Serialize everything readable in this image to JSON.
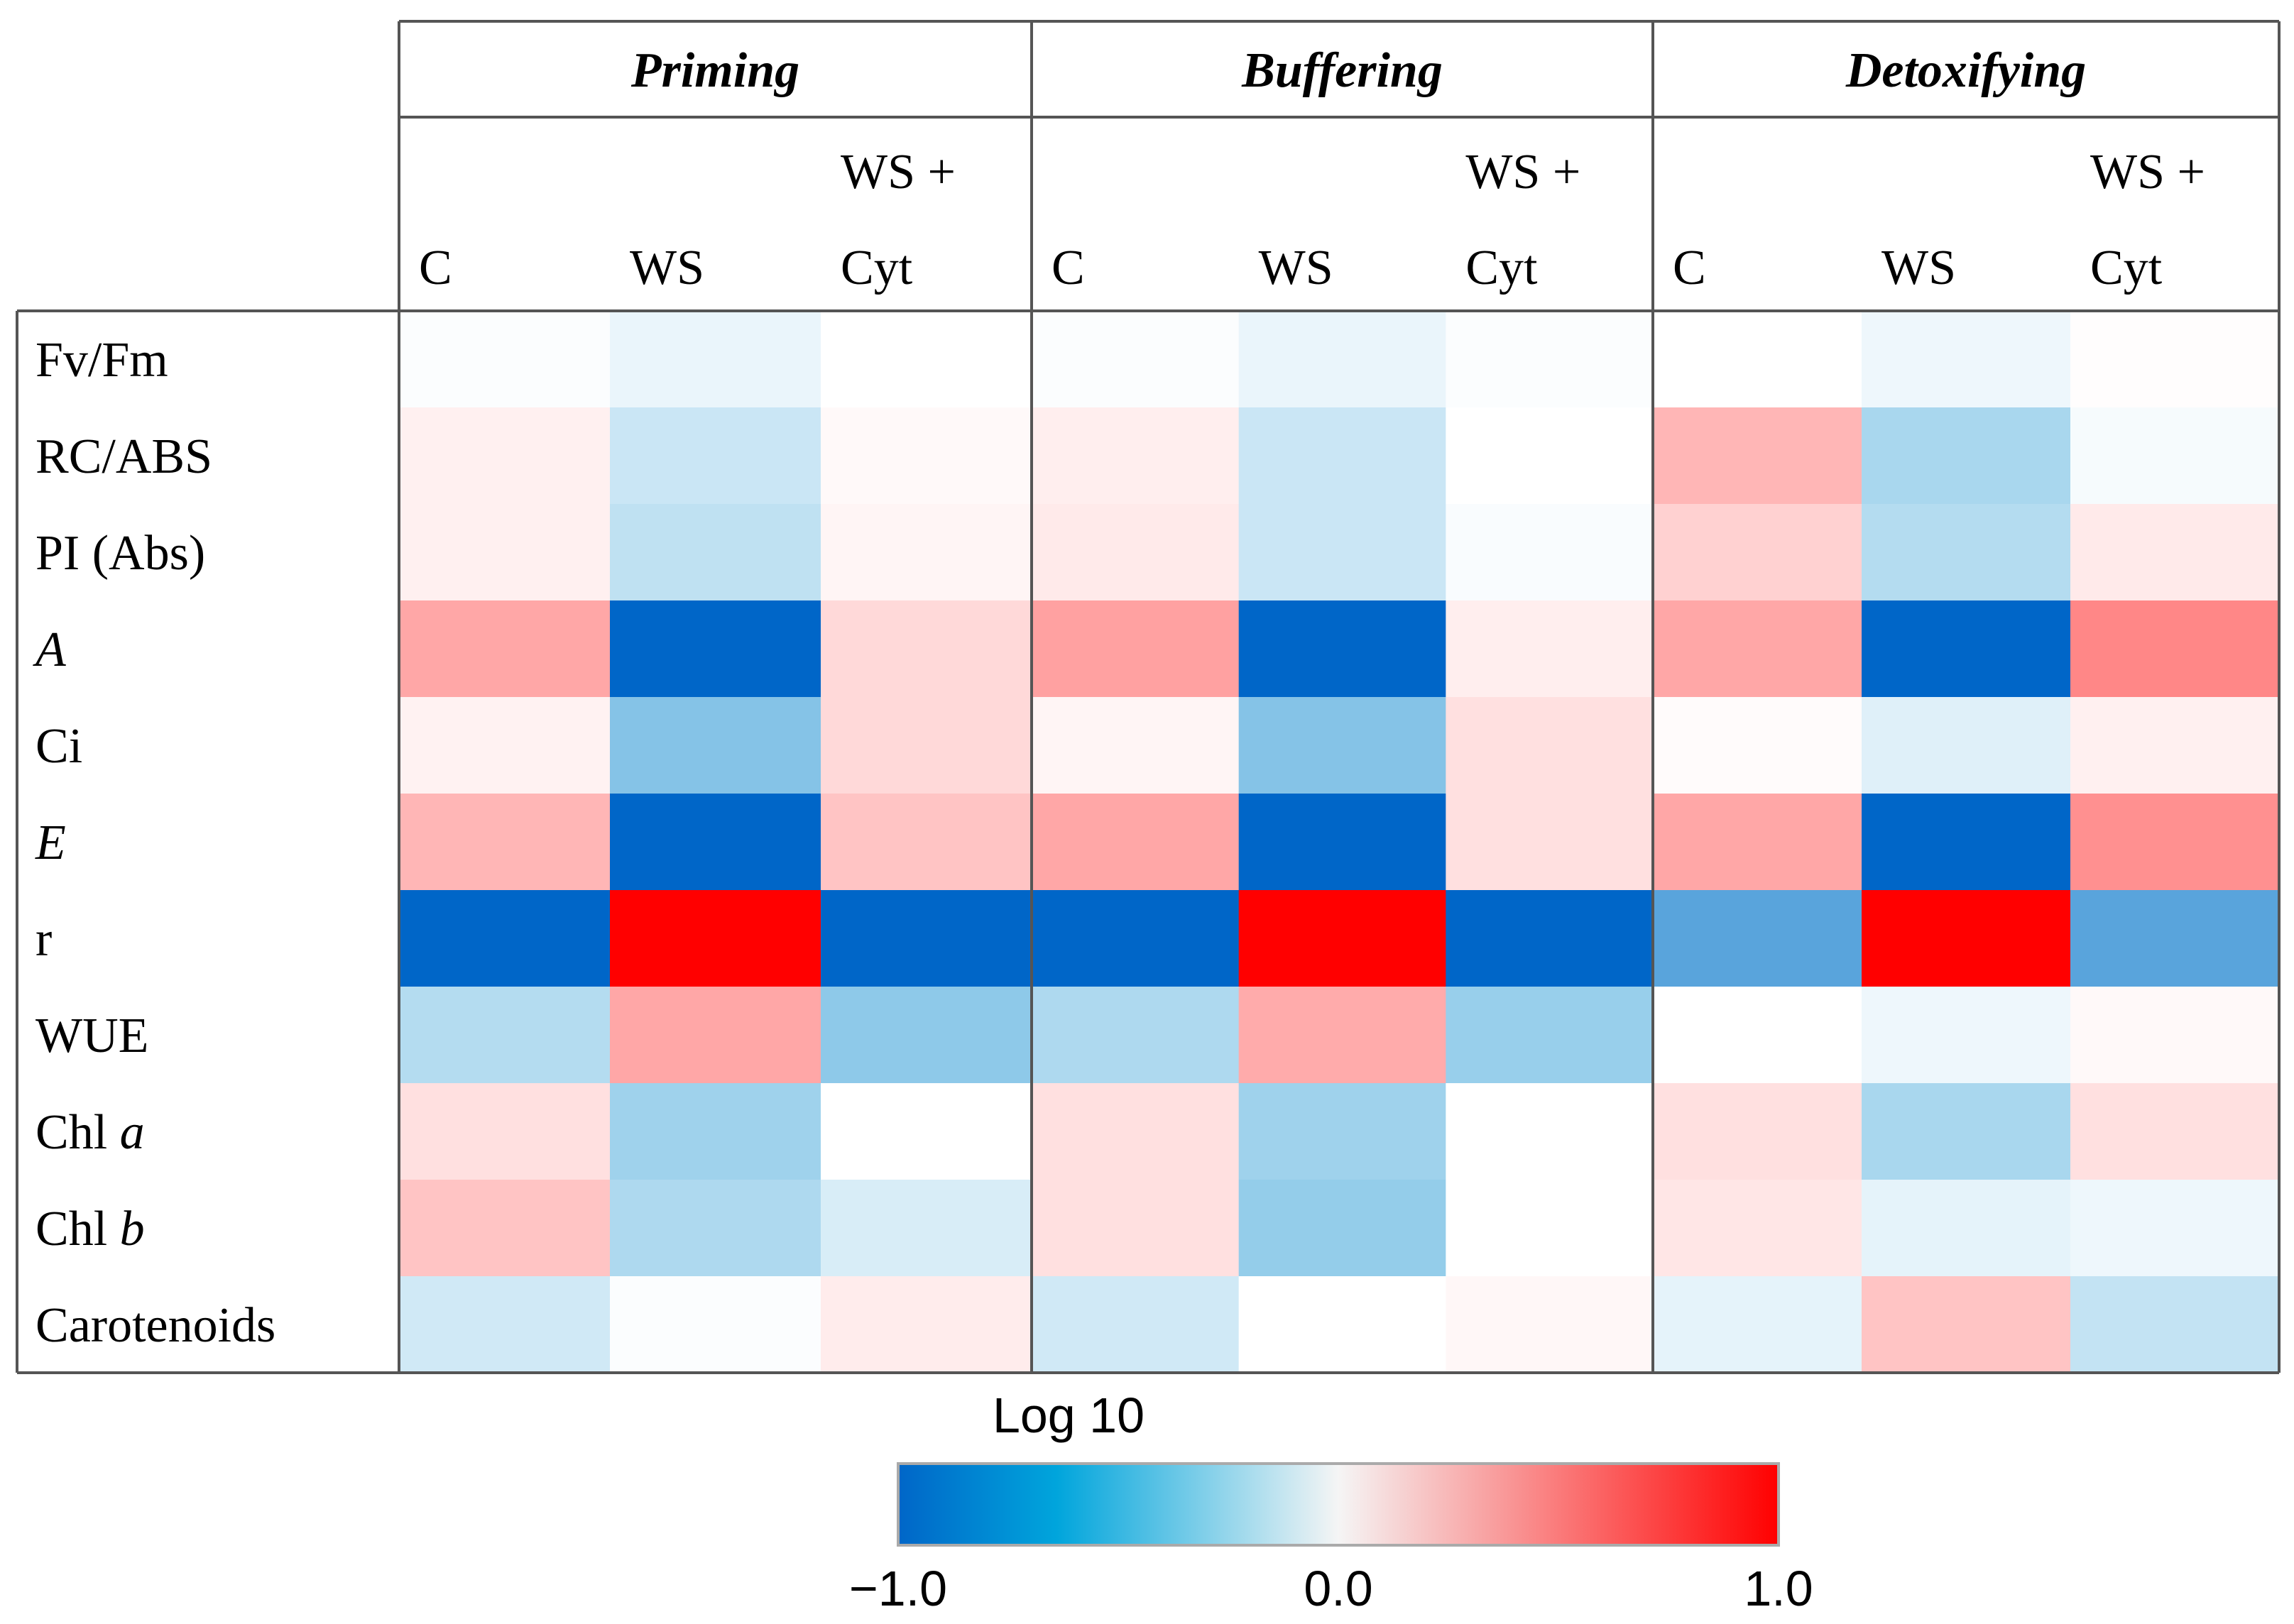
{
  "chart_data": {
    "type": "heatmap",
    "groups": [
      {
        "name": "Priming",
        "columns": [
          "C",
          "WS",
          "WS + Cyt"
        ]
      },
      {
        "name": "Buffering",
        "columns": [
          "C",
          "WS",
          "WS + Cyt"
        ]
      },
      {
        "name": "Detoxifying",
        "columns": [
          "C",
          "WS",
          "WS + Cyt"
        ]
      }
    ],
    "column_header_lines": [
      [
        "",
        "C"
      ],
      [
        "",
        "WS"
      ],
      [
        "WS +",
        "Cyt"
      ]
    ],
    "rows": [
      {
        "label": "Fv/Fm",
        "italic": ""
      },
      {
        "label": "RC/ABS",
        "italic": ""
      },
      {
        "label": "PI (Abs)",
        "italic": ""
      },
      {
        "label": "",
        "italic": "A"
      },
      {
        "label": "Ci",
        "italic": ""
      },
      {
        "label": "",
        "italic": "E"
      },
      {
        "label": "r",
        "italic": ""
      },
      {
        "label": "WUE",
        "italic": ""
      },
      {
        "label": "Chl ",
        "italic": "a"
      },
      {
        "label": "Chl ",
        "italic": "b"
      },
      {
        "label": "Carotenoids",
        "italic": ""
      }
    ],
    "values": [
      [
        -0.02,
        -0.1,
        0.0,
        -0.02,
        -0.1,
        -0.02,
        0.0,
        -0.08,
        0.01
      ],
      [
        0.07,
        -0.25,
        0.03,
        0.08,
        -0.25,
        0.0,
        0.35,
        -0.4,
        -0.04
      ],
      [
        0.07,
        -0.3,
        0.05,
        0.1,
        -0.25,
        -0.03,
        0.22,
        -0.35,
        0.1
      ],
      [
        0.42,
        -1.0,
        0.18,
        0.45,
        -1.0,
        0.08,
        0.42,
        -1.0,
        0.55
      ],
      [
        0.06,
        -0.55,
        0.18,
        0.05,
        -0.55,
        0.15,
        0.02,
        -0.15,
        0.07
      ],
      [
        0.35,
        -1.0,
        0.28,
        0.42,
        -1.0,
        0.15,
        0.42,
        -1.0,
        0.52
      ],
      [
        -1.0,
        1.0,
        -1.0,
        -1.0,
        1.0,
        -1.0,
        -0.7,
        1.0,
        -0.7
      ],
      [
        -0.35,
        0.42,
        -0.52,
        -0.38,
        0.4,
        -0.48,
        0.0,
        -0.08,
        0.03
      ],
      [
        0.15,
        -0.45,
        0.0,
        0.15,
        -0.45,
        0.0,
        0.15,
        -0.4,
        0.15
      ],
      [
        0.28,
        -0.38,
        -0.18,
        0.15,
        -0.5,
        0.0,
        0.12,
        -0.12,
        -0.08
      ],
      [
        -0.22,
        -0.02,
        0.09,
        -0.22,
        0.0,
        0.04,
        -0.12,
        0.28,
        -0.28
      ]
    ],
    "colorbar": {
      "title": "Log 10",
      "range": [
        -1.0,
        1.0
      ],
      "ticks": [
        "−1.0",
        "0.0",
        "1.0"
      ],
      "colors": [
        "#0066c8",
        "#00a5dc",
        "#f5f5f5",
        "#ff0000"
      ]
    }
  }
}
